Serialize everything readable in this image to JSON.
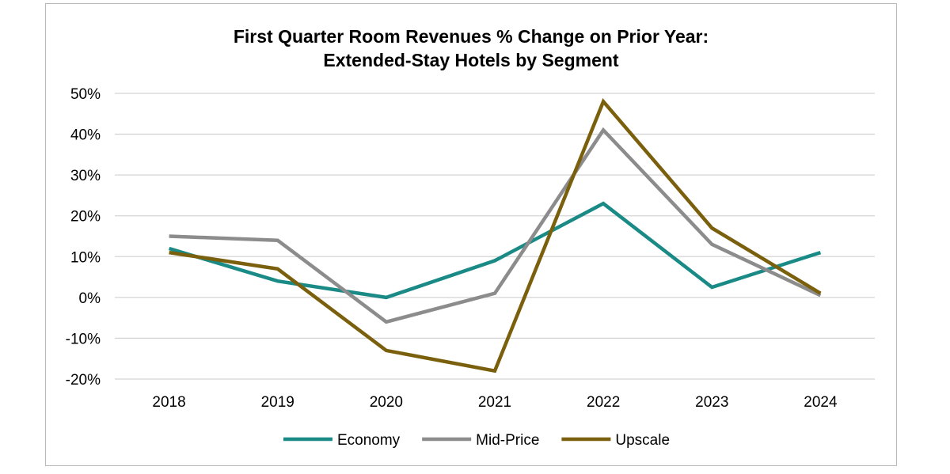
{
  "chart_data": {
    "type": "line",
    "title_line1": "First Quarter Room Revenues % Change on Prior Year:",
    "title_line2": "Extended-Stay Hotels by Segment",
    "xlabel": "",
    "ylabel": "",
    "categories": [
      "2018",
      "2019",
      "2020",
      "2021",
      "2022",
      "2023",
      "2024"
    ],
    "ylim": [
      -20,
      50
    ],
    "y_ticks": [
      50,
      40,
      30,
      20,
      10,
      0,
      -10,
      -20
    ],
    "y_tick_labels": [
      "50%",
      "40%",
      "30%",
      "20%",
      "10%",
      "0%",
      "-10%",
      "-20%"
    ],
    "grid": true,
    "legend_position": "bottom",
    "series": [
      {
        "name": "Economy",
        "color": "#1a8a86",
        "values": [
          12,
          4,
          0,
          9,
          23,
          2.5,
          11
        ]
      },
      {
        "name": "Mid-Price",
        "color": "#8c8c8c",
        "values": [
          15,
          14,
          -6,
          1,
          41,
          13,
          0.5
        ]
      },
      {
        "name": "Upscale",
        "color": "#7a5f0c",
        "values": [
          11,
          7,
          -13,
          -18,
          48,
          17,
          1
        ]
      }
    ]
  }
}
